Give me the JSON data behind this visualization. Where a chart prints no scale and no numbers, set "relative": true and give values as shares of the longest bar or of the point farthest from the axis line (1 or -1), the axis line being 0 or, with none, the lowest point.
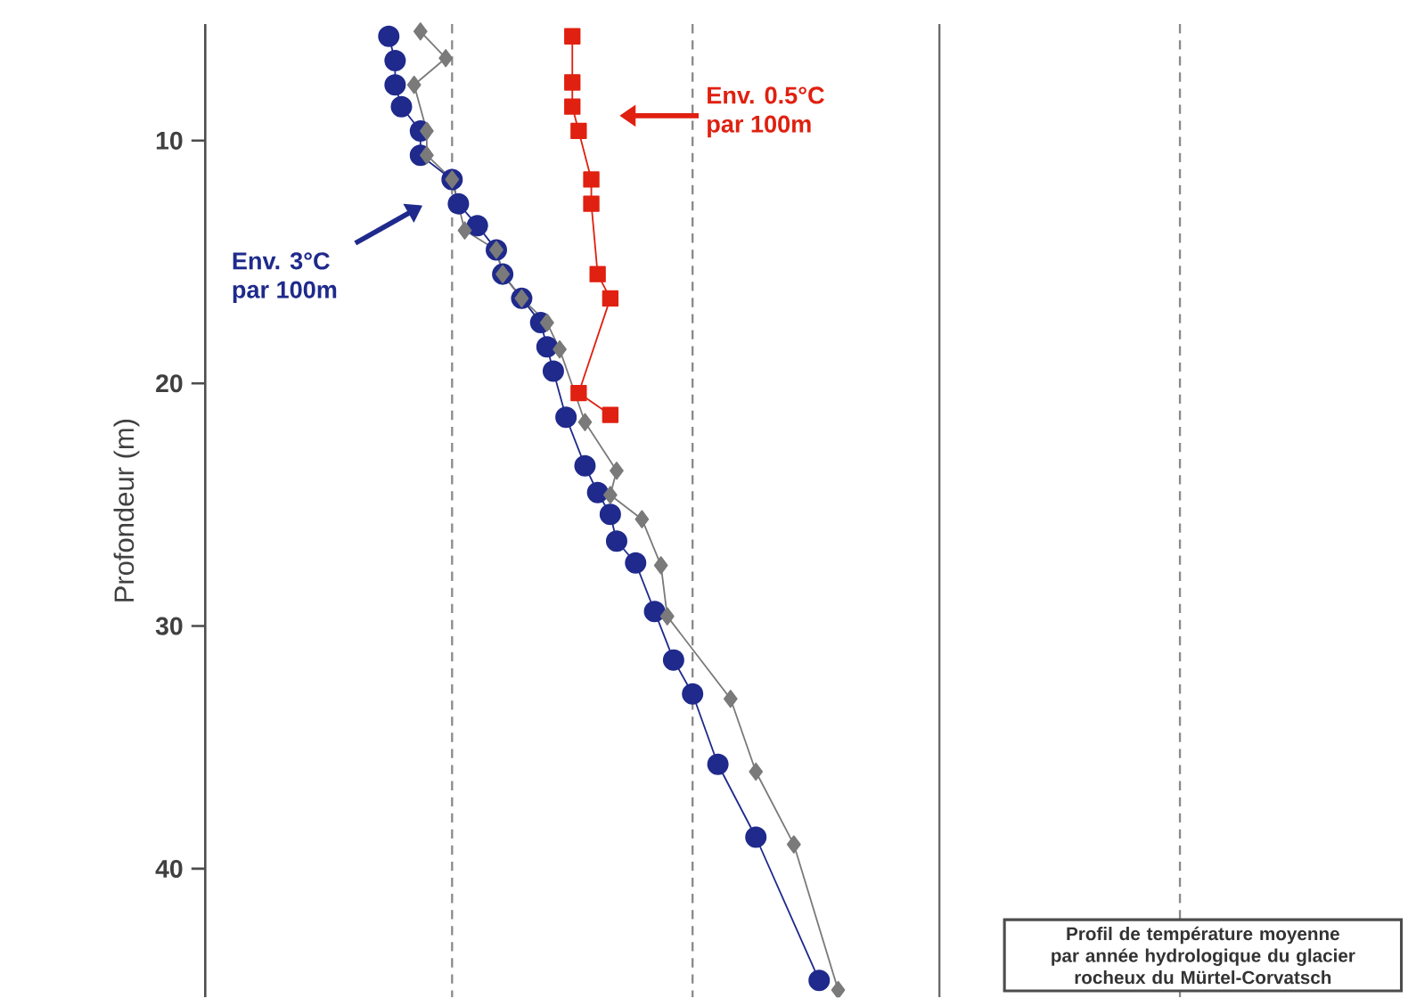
{
  "chart_data": {
    "type": "line",
    "orientation": "horizontal",
    "relative": true,
    "ylabel": "Profondeur (m)",
    "ylim": [
      45.3,
      5.2
    ],
    "yticks": [
      10,
      20,
      30,
      40
    ],
    "series": [
      {
        "color": "#1f2a8c",
        "marker": "circle",
        "x": [
          5.7,
          6.7,
          7.7,
          8.6,
          9.6,
          10.6,
          11.6,
          12.6,
          13.5,
          14.5,
          15.5,
          16.5,
          17.5,
          18.5,
          19.5,
          21.4,
          23.4,
          24.5,
          25.4,
          26.5,
          27.4,
          29.4,
          31.4,
          32.8,
          35.7,
          38.7,
          44.6
        ],
        "values": [
          0.29,
          0.3,
          0.3,
          0.31,
          0.34,
          0.34,
          0.39,
          0.4,
          0.43,
          0.46,
          0.47,
          0.5,
          0.53,
          0.54,
          0.55,
          0.57,
          0.6,
          0.62,
          0.64,
          0.65,
          0.68,
          0.71,
          0.74,
          0.77,
          0.81,
          0.87,
          0.97
        ]
      },
      {
        "color": "#7a7a7a",
        "marker": "diamond",
        "x": [
          5.5,
          6.6,
          7.7,
          9.6,
          10.6,
          11.6,
          13.7,
          14.5,
          15.5,
          16.5,
          17.5,
          18.6,
          21.6,
          23.6,
          24.6,
          25.6,
          27.5,
          29.6,
          33.0,
          36.0,
          39.0,
          45.0
        ],
        "values": [
          0.34,
          0.38,
          0.33,
          0.35,
          0.35,
          0.39,
          0.41,
          0.46,
          0.47,
          0.5,
          0.54,
          0.56,
          0.6,
          0.65,
          0.64,
          0.69,
          0.72,
          0.73,
          0.83,
          0.87,
          0.93,
          1.0
        ]
      },
      {
        "color": "#e02010",
        "marker": "square",
        "x": [
          5.7,
          7.6,
          8.6,
          9.6,
          11.6,
          12.6,
          15.5,
          16.5,
          20.4,
          21.3
        ],
        "values": [
          0.58,
          0.58,
          0.58,
          0.59,
          0.61,
          0.61,
          0.62,
          0.64,
          0.59,
          0.64
        ]
      }
    ],
    "ref_lines": [
      {
        "axis": "x",
        "value": 0.39,
        "color": "#8a8a8a",
        "line_style": "dashed"
      },
      {
        "axis": "x",
        "value": 0.77,
        "color": "#8a8a8a",
        "line_style": "dashed"
      },
      {
        "axis": "x",
        "value": 1.16,
        "color": "#6a6a6a",
        "line_style": "solid"
      },
      {
        "axis": "x",
        "value": 1.54,
        "color": "#8a8a8a",
        "line_style": "dashed"
      }
    ],
    "annotations": [
      "Env. 3°C par 100m",
      "Env. 0.5°C par 100m",
      "Profil de température moyenne par année hydrologique du glacier rocheux du Mürtel-Corvatsch"
    ]
  }
}
